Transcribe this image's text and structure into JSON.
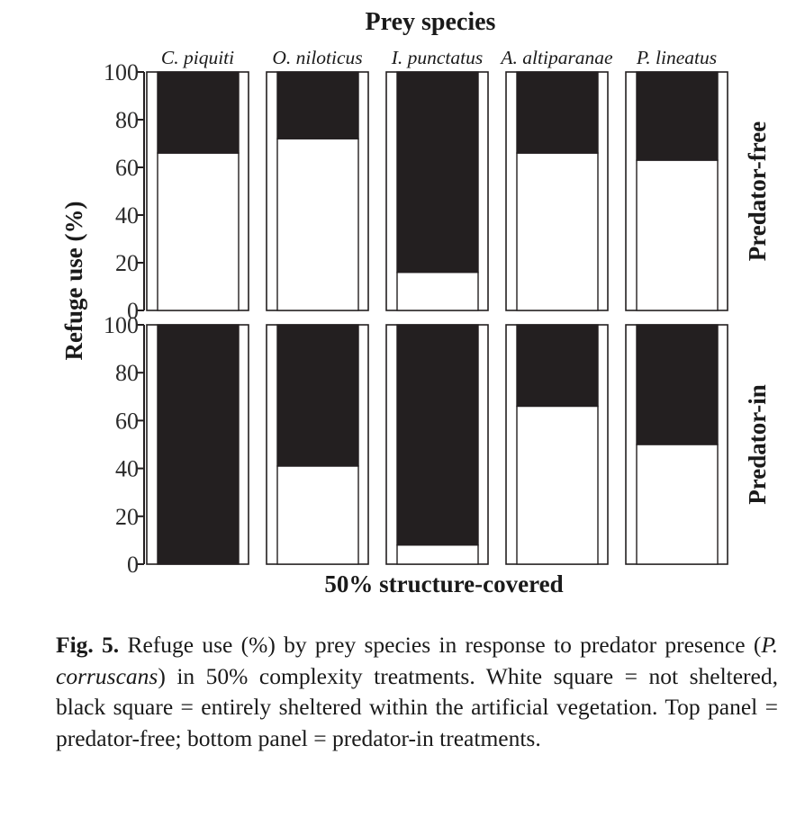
{
  "chart_data": {
    "type": "bar",
    "title": "Prey species",
    "xlabel": "50% structure-covered",
    "ylabel": "Refuge use (%)",
    "ylim": [
      0,
      100
    ],
    "yticks": [
      "0",
      "20",
      "40",
      "60",
      "80",
      "100"
    ],
    "categories": [
      "C. piquiti",
      "O. niloticus",
      "I. punctatus",
      "A. altiparanae",
      "P. lineatus"
    ],
    "stacked": true,
    "panels": [
      {
        "label": "Predator-free",
        "series": [
          {
            "color": "#ffffff",
            "values": [
              66,
              72,
              16,
              66,
              63
            ]
          },
          {
            "color": "#231f20",
            "values": [
              34,
              28,
              84,
              34,
              37
            ]
          }
        ]
      },
      {
        "label": "Predator-in",
        "series": [
          {
            "color": "#ffffff",
            "values": [
              0,
              41,
              8,
              66,
              50
            ]
          },
          {
            "color": "#231f20",
            "values": [
              100,
              59,
              92,
              34,
              50
            ]
          }
        ]
      }
    ]
  },
  "caption": {
    "fig_label": "Fig. 5.",
    "text_1": " Refuge use (%) by prey species in response to predator presence (",
    "species": "P. corruscans",
    "text_2": ") in 50% complexity treatments. White square = not sheltered, black square = entirely sheltered within the artificial vegetation. Top panel = predator-free; bottom panel = predator-in treatments."
  }
}
